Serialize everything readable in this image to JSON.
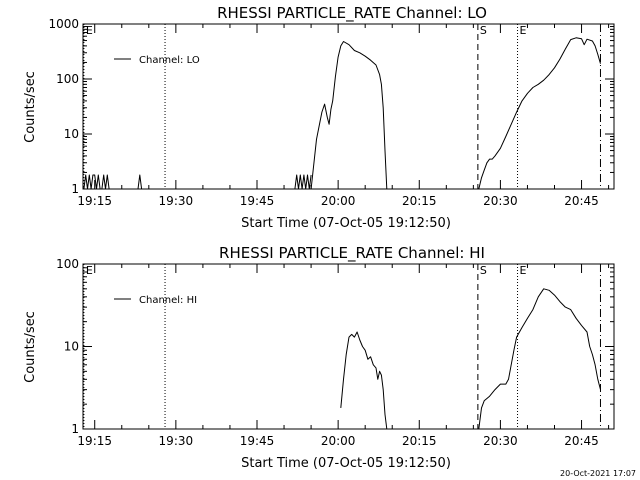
{
  "footer": {
    "timestamp": "20-Oct-2021 17:07"
  },
  "chart_data": [
    {
      "type": "line",
      "title": "RHESSI PARTICLE_RATE Channel: LO",
      "xlabel": "Start Time (07-Oct-05 19:12:50)",
      "ylabel": "Counts/sec",
      "y_scale": "log",
      "ylim": [
        1,
        1000
      ],
      "y_tick_labels": [
        "1",
        "10",
        "100",
        "1000"
      ],
      "xlim": [
        "19:12:50",
        "20:51:00"
      ],
      "x_tick_labels": [
        "19:15",
        "19:30",
        "19:45",
        "20:00",
        "20:15",
        "20:30",
        "20:45"
      ],
      "legend": {
        "position": "top-left",
        "entries": [
          "Channel: LO"
        ]
      },
      "markers": [
        {
          "label": "E",
          "time": "19:13:00",
          "style": "dotted"
        },
        {
          "label": "",
          "time": "19:28:00",
          "style": "dotted"
        },
        {
          "label": "S",
          "time": "20:25:50",
          "style": "dashed"
        },
        {
          "label": "E",
          "time": "20:33:10",
          "style": "dotted"
        },
        {
          "label": "",
          "time": "20:48:30",
          "style": "dashdot"
        }
      ],
      "series": [
        {
          "name": "Channel: LO",
          "segments": [
            [
              [
                "19:13:00",
                1
              ],
              [
                "19:13:20",
                1.8
              ],
              [
                "19:13:40",
                1
              ],
              [
                "19:14:00",
                1.8
              ],
              [
                "19:14:20",
                1
              ],
              [
                "19:14:40",
                1.8
              ],
              [
                "19:15:00",
                1.8
              ],
              [
                "19:15:20",
                1
              ],
              [
                "19:15:40",
                1.8
              ],
              [
                "19:16:00",
                1
              ],
              [
                "19:16:20",
                1
              ],
              [
                "19:16:40",
                1.8
              ],
              [
                "19:17:00",
                1
              ],
              [
                "19:17:20",
                1.8
              ],
              [
                "19:17:40",
                1
              ]
            ],
            [
              [
                "19:23:00",
                1
              ],
              [
                "19:23:20",
                1.8
              ],
              [
                "19:23:40",
                1
              ]
            ],
            [
              [
                "19:52:00",
                1
              ],
              [
                "19:52:20",
                1.8
              ],
              [
                "19:52:40",
                1
              ],
              [
                "19:53:00",
                1.8
              ],
              [
                "19:53:20",
                1
              ],
              [
                "19:53:40",
                1.8
              ],
              [
                "19:54:00",
                1
              ],
              [
                "19:54:20",
                1.8
              ],
              [
                "19:54:40",
                1
              ],
              [
                "19:55:00",
                1.8
              ]
            ],
            [
              [
                "19:55:00",
                1
              ],
              [
                "19:56:00",
                8
              ],
              [
                "19:57:00",
                25
              ],
              [
                "19:57:30",
                35
              ],
              [
                "19:58:00",
                20
              ],
              [
                "19:58:20",
                15
              ],
              [
                "19:58:40",
                28
              ],
              [
                "19:59:00",
                40
              ],
              [
                "19:59:30",
                110
              ],
              [
                "20:00:00",
                250
              ],
              [
                "20:00:30",
                400
              ],
              [
                "20:01:00",
                480
              ],
              [
                "20:02:00",
                420
              ],
              [
                "20:03:00",
                330
              ],
              [
                "20:04:00",
                300
              ],
              [
                "20:05:00",
                260
              ],
              [
                "20:06:00",
                220
              ],
              [
                "20:07:00",
                180
              ],
              [
                "20:07:40",
                120
              ],
              [
                "20:08:00",
                80
              ],
              [
                "20:08:20",
                30
              ],
              [
                "20:08:40",
                5
              ],
              [
                "20:09:00",
                1
              ]
            ],
            [
              [
                "20:26:00",
                1
              ],
              [
                "20:26:30",
                1.6
              ],
              [
                "20:27:00",
                2.2
              ],
              [
                "20:27:30",
                3
              ],
              [
                "20:28:00",
                3.5
              ],
              [
                "20:28:30",
                3.5
              ],
              [
                "20:29:00",
                4
              ],
              [
                "20:30:00",
                5.5
              ],
              [
                "20:31:00",
                9
              ],
              [
                "20:32:00",
                15
              ],
              [
                "20:33:00",
                25
              ],
              [
                "20:34:00",
                40
              ],
              [
                "20:35:00",
                55
              ],
              [
                "20:36:00",
                70
              ],
              [
                "20:37:00",
                80
              ],
              [
                "20:38:00",
                95
              ],
              [
                "20:39:00",
                120
              ],
              [
                "20:40:00",
                160
              ],
              [
                "20:41:00",
                230
              ],
              [
                "20:42:00",
                350
              ],
              [
                "20:43:00",
                520
              ],
              [
                "20:44:00",
                560
              ],
              [
                "20:45:00",
                540
              ],
              [
                "20:45:30",
                420
              ],
              [
                "20:46:00",
                530
              ],
              [
                "20:47:00",
                490
              ],
              [
                "20:47:30",
                400
              ],
              [
                "20:48:00",
                280
              ],
              [
                "20:48:30",
                190
              ]
            ]
          ]
        }
      ]
    },
    {
      "type": "line",
      "title": "RHESSI PARTICLE_RATE Channel: HI",
      "xlabel": "Start Time (07-Oct-05 19:12:50)",
      "ylabel": "Counts/sec",
      "y_scale": "log",
      "ylim": [
        1,
        100
      ],
      "y_tick_labels": [
        "1",
        "10",
        "100"
      ],
      "xlim": [
        "19:12:50",
        "20:51:00"
      ],
      "x_tick_labels": [
        "19:15",
        "19:30",
        "19:45",
        "20:00",
        "20:15",
        "20:30",
        "20:45"
      ],
      "legend": {
        "position": "top-left",
        "entries": [
          "Channel: HI"
        ]
      },
      "markers": [
        {
          "label": "E",
          "time": "19:13:00",
          "style": "dotted"
        },
        {
          "label": "",
          "time": "19:28:00",
          "style": "dotted"
        },
        {
          "label": "S",
          "time": "20:25:50",
          "style": "dashed"
        },
        {
          "label": "E",
          "time": "20:33:10",
          "style": "dotted"
        },
        {
          "label": "",
          "time": "20:48:30",
          "style": "dashdot"
        }
      ],
      "series": [
        {
          "name": "Channel: HI",
          "segments": [
            [
              [
                "20:00:30",
                1.8
              ],
              [
                "20:01:00",
                4
              ],
              [
                "20:01:30",
                8
              ],
              [
                "20:02:00",
                13
              ],
              [
                "20:02:30",
                14
              ],
              [
                "20:03:00",
                13
              ],
              [
                "20:03:30",
                15
              ],
              [
                "20:04:00",
                12
              ],
              [
                "20:04:30",
                10
              ],
              [
                "20:05:00",
                9
              ],
              [
                "20:05:30",
                7
              ],
              [
                "20:06:00",
                7.5
              ],
              [
                "20:06:30",
                6
              ],
              [
                "20:07:00",
                5.5
              ],
              [
                "20:07:20",
                4
              ],
              [
                "20:07:40",
                5
              ],
              [
                "20:08:00",
                4.5
              ],
              [
                "20:08:20",
                3
              ],
              [
                "20:08:40",
                1.5
              ],
              [
                "20:09:00",
                1
              ]
            ],
            [
              [
                "20:26:00",
                1
              ],
              [
                "20:26:30",
                1.8
              ],
              [
                "20:27:00",
                2.2
              ],
              [
                "20:28:00",
                2.5
              ],
              [
                "20:29:00",
                3
              ],
              [
                "20:30:00",
                3.5
              ],
              [
                "20:31:00",
                3.5
              ],
              [
                "20:31:30",
                4
              ],
              [
                "20:32:00",
                6
              ],
              [
                "20:32:30",
                9
              ],
              [
                "20:33:00",
                13
              ],
              [
                "20:34:00",
                17
              ],
              [
                "20:35:00",
                22
              ],
              [
                "20:36:00",
                28
              ],
              [
                "20:37:00",
                40
              ],
              [
                "20:38:00",
                50
              ],
              [
                "20:39:00",
                48
              ],
              [
                "20:40:00",
                42
              ],
              [
                "20:41:00",
                35
              ],
              [
                "20:42:00",
                30
              ],
              [
                "20:43:00",
                28
              ],
              [
                "20:44:00",
                22
              ],
              [
                "20:45:00",
                18
              ],
              [
                "20:46:00",
                15
              ],
              [
                "20:46:30",
                10
              ],
              [
                "20:47:00",
                8
              ],
              [
                "20:47:30",
                6
              ],
              [
                "20:48:00",
                4
              ],
              [
                "20:48:30",
                3
              ]
            ]
          ]
        }
      ]
    }
  ]
}
